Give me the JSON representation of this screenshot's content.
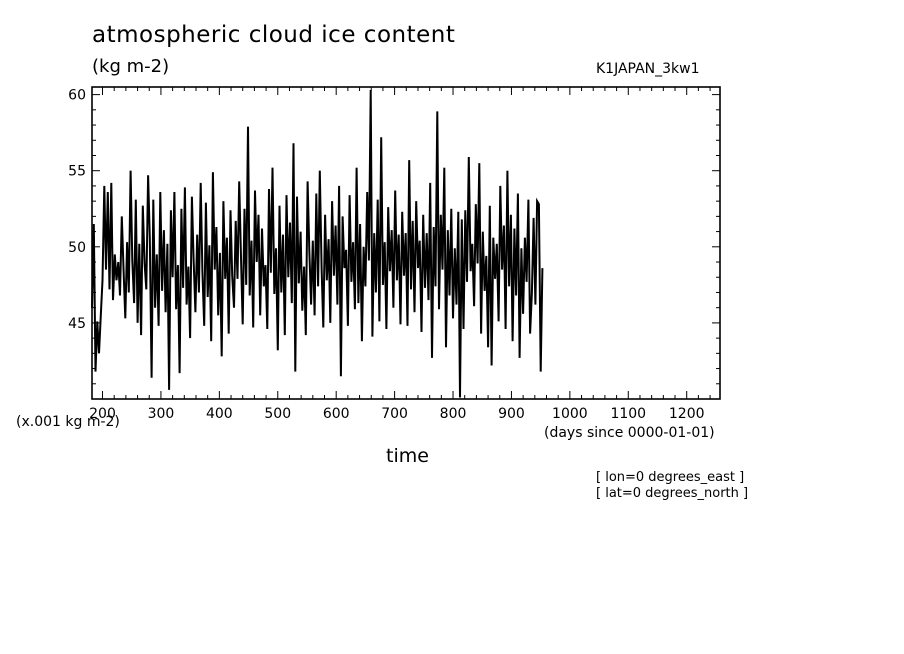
{
  "chart_data": {
    "type": "line",
    "title": "atmospheric cloud ice content",
    "units_label": "(kg m-2)",
    "run_label": "K1JAPAN_3kw1",
    "y_multiplier_label": "(x.001 kg m-2)",
    "x_units_label": "(days since 0000-01-01)",
    "xlabel": "time",
    "notes": [
      "[ lon=0 degrees_east ]",
      "[ lat=0 degrees_north ]"
    ],
    "xlim": [
      182,
      1257
    ],
    "ylim": [
      40,
      60.5
    ],
    "x_ticks": [
      200,
      300,
      400,
      500,
      600,
      700,
      800,
      900,
      1000,
      1100,
      1200
    ],
    "y_ticks": [
      45,
      50,
      55,
      60
    ],
    "x_tick_labels": [
      "200",
      "300",
      "400",
      "500",
      "600",
      "700",
      "800",
      "900",
      "1000",
      "1100",
      "1200"
    ],
    "y_tick_labels": [
      "45",
      "50",
      "55",
      "60"
    ],
    "grid": false,
    "series": [
      {
        "color": "#000000",
        "x_start": 182,
        "x_step": 3,
        "values": [
          46.0,
          51.5,
          41.8,
          45.1,
          43.0,
          45.5,
          47.8,
          54.0,
          48.5,
          53.6,
          47.2,
          54.2,
          46.5,
          49.5,
          47.8,
          49.0,
          46.8,
          52.0,
          48.6,
          45.3,
          50.3,
          47.0,
          55.0,
          49.1,
          46.3,
          53.1,
          45.0,
          50.2,
          44.2,
          52.7,
          48.9,
          47.2,
          54.7,
          50.6,
          41.4,
          53.1,
          46.0,
          49.5,
          44.8,
          53.6,
          47.1,
          51.1,
          45.7,
          50.2,
          40.6,
          52.4,
          48.0,
          53.6,
          45.9,
          48.8,
          41.7,
          52.5,
          47.3,
          53.9,
          46.2,
          48.7,
          44.0,
          53.3,
          49.2,
          45.7,
          50.8,
          47.0,
          54.2,
          48.4,
          44.8,
          52.9,
          46.7,
          50.1,
          43.8,
          54.9,
          48.5,
          51.3,
          45.5,
          49.6,
          42.8,
          53.0,
          47.9,
          50.6,
          44.3,
          52.4,
          48.1,
          46.0,
          51.7,
          47.9,
          54.3,
          49.3,
          44.9,
          52.5,
          47.5,
          57.9,
          46.8,
          50.4,
          44.7,
          53.7,
          49.0,
          52.1,
          45.5,
          51.2,
          47.4,
          48.8,
          44.6,
          53.8,
          48.3,
          55.2,
          46.9,
          49.9,
          43.2,
          52.7,
          47.0,
          50.8,
          44.2,
          53.4,
          48.0,
          51.6,
          46.3,
          56.8,
          41.8,
          53.3,
          47.6,
          51.0,
          45.8,
          48.7,
          44.2,
          54.3,
          49.8,
          46.2,
          50.4,
          45.5,
          53.5,
          47.4,
          55.0,
          48.6,
          44.7,
          52.1,
          47.8,
          50.5,
          45.0,
          53.0,
          48.1,
          51.4,
          46.2,
          54.0,
          41.5,
          52.0,
          48.6,
          49.8,
          44.8,
          53.4,
          47.7,
          50.3,
          45.9,
          55.2,
          46.3,
          51.5,
          43.8,
          50.0,
          47.4,
          53.6,
          49.1,
          60.3,
          44.1,
          50.9,
          47.0,
          53.1,
          45.1,
          57.2,
          47.5,
          50.3,
          44.6,
          52.6,
          48.4,
          51.1,
          46.0,
          53.7,
          47.8,
          50.8,
          44.9,
          52.3,
          48.1,
          50.9,
          44.8,
          55.7,
          47.2,
          51.7,
          45.7,
          53.0,
          48.6,
          50.4,
          44.4,
          52.1,
          47.3,
          50.9,
          46.5,
          54.2,
          42.7,
          51.3,
          47.4,
          58.9,
          45.9,
          52.1,
          48.5,
          55.2,
          43.4,
          51.1,
          46.8,
          52.5,
          45.3,
          49.9,
          46.2,
          52.3,
          40.1,
          51.8,
          44.6,
          52.4,
          47.7,
          55.9,
          48.4,
          50.2,
          46.1,
          52.8,
          48.9,
          55.5,
          44.3,
          51.0,
          47.1,
          49.4,
          43.4,
          52.7,
          42.2,
          50.6,
          47.9,
          50.2,
          45.1,
          54.0,
          48.5,
          51.4,
          44.6,
          55.0,
          47.4,
          52.1,
          43.8,
          51.2,
          46.8,
          53.5,
          42.7,
          49.9,
          45.6,
          50.6,
          47.7,
          53.1,
          44.3,
          47.0,
          51.9,
          46.2,
          53.0,
          52.8,
          41.8,
          48.6
        ]
      }
    ]
  }
}
